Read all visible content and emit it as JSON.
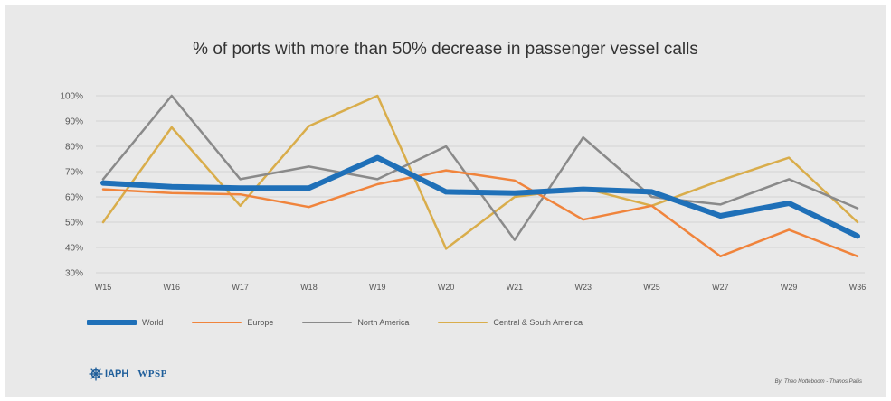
{
  "chart_data": {
    "type": "line",
    "title": "% of ports with more than 50% decrease in passenger vessel calls",
    "categories": [
      "W15",
      "W16",
      "W17",
      "W18",
      "W19",
      "W20",
      "W21",
      "W23",
      "W25",
      "W27",
      "W29",
      "W36"
    ],
    "yticks": [
      "30%",
      "40%",
      "50%",
      "60%",
      "70%",
      "80%",
      "90%",
      "100%"
    ],
    "ylim": [
      30,
      100
    ],
    "grid": true,
    "legend_position": "bottom-left",
    "series": [
      {
        "name": "World",
        "color": "#1f70b8",
        "values": [
          65.5,
          64,
          63.5,
          63.5,
          75.5,
          62,
          61.5,
          63,
          62,
          52.5,
          57.5,
          44.5
        ]
      },
      {
        "name": "Europe",
        "color": "#f0843c",
        "values": [
          63,
          61.5,
          61,
          56,
          65,
          70.5,
          66.5,
          51,
          56.5,
          36.5,
          47,
          36.5
        ]
      },
      {
        "name": "North America",
        "color": "#8a8a8a",
        "values": [
          67,
          100,
          67,
          72,
          67,
          80,
          43,
          83.5,
          60,
          57,
          67,
          55.5
        ]
      },
      {
        "name": "Central & South America",
        "color": "#d9ad4b",
        "values": [
          50,
          87.5,
          56.5,
          88,
          100,
          39.5,
          60,
          63.5,
          56.5,
          66.5,
          75.5,
          50
        ]
      }
    ]
  },
  "logo": {
    "iaph": "IAPH",
    "wpsp": "WPSP"
  },
  "credit": "By: Theo Notteboom - Thanos Pallis"
}
